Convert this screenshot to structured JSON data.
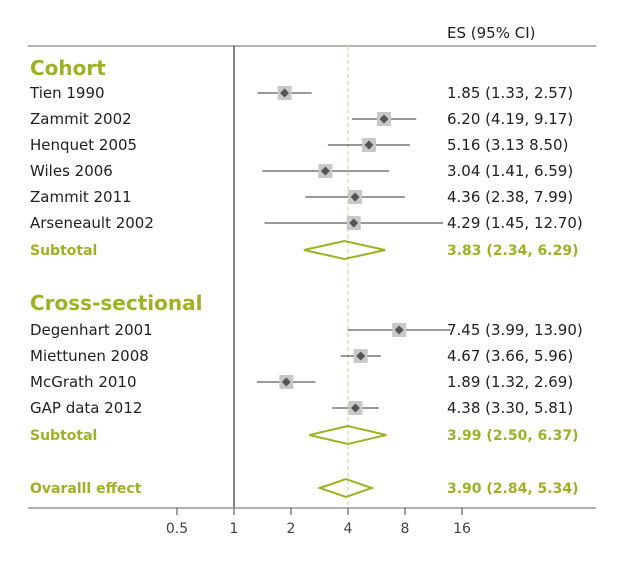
{
  "colors": {
    "accent": "#9bb325",
    "text": "#222222",
    "marker": "#555555",
    "box": "#c8c8c8",
    "axis": "#999999",
    "reference": "#e6dcb0"
  },
  "chart_data": {
    "type": "forest",
    "header": "ES (95% CI)",
    "x_scale": "log2",
    "xlim": [
      0.5,
      16
    ],
    "reference_line": 4,
    "ticks": [
      {
        "value": 0.5,
        "label": "0.5"
      },
      {
        "value": 1,
        "label": "1"
      },
      {
        "value": 2,
        "label": "2"
      },
      {
        "value": 4,
        "label": "4"
      },
      {
        "value": 8,
        "label": "8"
      },
      {
        "value": 16,
        "label": "16"
      }
    ],
    "groups": [
      {
        "title": "Cohort",
        "studies": [
          {
            "label": "Tien 1990",
            "es": 1.85,
            "lo": 1.33,
            "hi": 2.57,
            "text": "1.85 (1.33, 2.57)"
          },
          {
            "label": "Zammit 2002",
            "es": 6.2,
            "lo": 4.19,
            "hi": 9.17,
            "text": "6.20 (4.19, 9.17)"
          },
          {
            "label": "Henquet 2005",
            "es": 5.16,
            "lo": 3.13,
            "hi": 8.5,
            "text": "5.16 (3.13 8.50)"
          },
          {
            "label": "Wiles 2006",
            "es": 3.04,
            "lo": 1.41,
            "hi": 6.59,
            "text": "3.04 (1.41, 6.59)"
          },
          {
            "label": "Zammit 2011",
            "es": 4.36,
            "lo": 2.38,
            "hi": 7.99,
            "text": "4.36 (2.38, 7.99)"
          },
          {
            "label": "Arseneault 2002",
            "es": 4.29,
            "lo": 1.45,
            "hi": 12.7,
            "text": "4.29 (1.45, 12.70)"
          }
        ],
        "subtotal": {
          "label": "Subtotal",
          "es": 3.83,
          "lo": 2.34,
          "hi": 6.29,
          "text": "3.83 (2.34, 6.29)"
        }
      },
      {
        "title": "Cross-sectional",
        "studies": [
          {
            "label": "Degenhart 2001",
            "es": 7.45,
            "lo": 3.99,
            "hi": 13.9,
            "text": "7.45 (3.99, 13.90)"
          },
          {
            "label": "Miettunen 2008",
            "es": 4.67,
            "lo": 3.66,
            "hi": 5.96,
            "text": "4.67 (3.66, 5.96)"
          },
          {
            "label": "McGrath 2010",
            "es": 1.89,
            "lo": 1.32,
            "hi": 2.69,
            "text": "1.89 (1.32, 2.69)"
          },
          {
            "label": "GAP data 2012",
            "es": 4.38,
            "lo": 3.3,
            "hi": 5.81,
            "text": "4.38 (3.30, 5.81)"
          }
        ],
        "subtotal": {
          "label": "Subtotal",
          "es": 3.99,
          "lo": 2.5,
          "hi": 6.37,
          "text": "3.99 (2.50, 6.37)"
        }
      }
    ],
    "overall": {
      "label": "Ovaralll effect",
      "es": 3.9,
      "lo": 2.84,
      "hi": 5.34,
      "text": "3.90 (2.84, 5.34)"
    }
  }
}
